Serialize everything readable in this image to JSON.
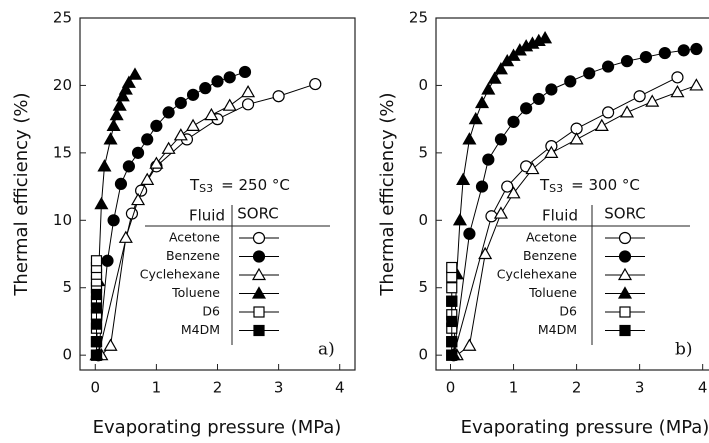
{
  "chart_data": [
    {
      "type": "line",
      "panel_label": "a)",
      "annotation": {
        "symbol": "T",
        "subscript": "S3",
        "text": "=  250 °C"
      },
      "xlabel": "Evaporating pressure (MPa)",
      "ylabel": "Thermal efficiency (%)",
      "xlim": [
        -0.25,
        4.25
      ],
      "ylim": [
        -1.1,
        25
      ],
      "xticks": [
        0,
        1,
        2,
        3,
        4
      ],
      "yticks": [
        0,
        5,
        10,
        15,
        20,
        25
      ],
      "legend": {
        "headers": [
          "Fluid",
          "SORC"
        ]
      },
      "series": [
        {
          "name": "Acetone",
          "color": "#000",
          "marker": "circle",
          "filled": false,
          "x": [
            0.05,
            0.6,
            0.75,
            1.0,
            1.5,
            2.0,
            2.5,
            3.0,
            3.6
          ],
          "values": [
            0,
            10.5,
            12.2,
            14,
            16,
            17.5,
            18.6,
            19.2,
            20.1
          ]
        },
        {
          "name": "Benzene",
          "color": "#000",
          "marker": "circle",
          "filled": true,
          "x": [
            0.05,
            0.2,
            0.3,
            0.42,
            0.55,
            0.7,
            0.85,
            1.0,
            1.2,
            1.4,
            1.6,
            1.8,
            2.0,
            2.2,
            2.45
          ],
          "values": [
            0,
            7,
            10,
            12.7,
            14,
            15,
            16,
            17,
            18,
            18.7,
            19.3,
            19.8,
            20.3,
            20.6,
            21
          ]
        },
        {
          "name": "Cyclehexane",
          "color": "#000",
          "marker": "triangle",
          "filled": false,
          "x": [
            0.1,
            0.25,
            0.5,
            0.7,
            0.85,
            1.0,
            1.2,
            1.4,
            1.6,
            1.9,
            2.2,
            2.5
          ],
          "values": [
            0,
            0.7,
            8.7,
            11.5,
            13,
            14.2,
            15.3,
            16.3,
            17,
            17.8,
            18.5,
            19.5
          ]
        },
        {
          "name": "Toluene",
          "color": "#000",
          "marker": "triangle",
          "filled": true,
          "x": [
            0.02,
            0.05,
            0.1,
            0.15,
            0.25,
            0.3,
            0.35,
            0.4,
            0.45,
            0.5,
            0.55,
            0.65
          ],
          "values": [
            0,
            5.5,
            11.2,
            14,
            16,
            17,
            17.8,
            18.5,
            19.2,
            19.7,
            20.2,
            20.8
          ]
        },
        {
          "name": "D6",
          "color": "#000",
          "marker": "square",
          "filled": false,
          "x": [
            0.02,
            0.02,
            0.02,
            0.02,
            0.02,
            0.02,
            0.02,
            0.02,
            0.02,
            0.02
          ],
          "values": [
            0,
            1,
            2,
            3,
            4,
            5,
            5.5,
            6,
            6.5,
            7
          ]
        },
        {
          "name": "M4DM",
          "color": "#000",
          "marker": "square",
          "filled": true,
          "x": [
            0.02,
            0.02,
            0.02,
            0.02,
            0.02
          ],
          "values": [
            0,
            1,
            2.3,
            3.5,
            4.5
          ]
        }
      ]
    },
    {
      "type": "line",
      "panel_label": "b)",
      "annotation": {
        "symbol": "T",
        "subscript": "S3",
        "text": "=  300 °C"
      },
      "xlabel": "Evaporating pressure (MPa)",
      "ylabel": "Thermal efficiency (%)",
      "xlim": [
        -0.23,
        4.37
      ],
      "ylim": [
        -1.1,
        25
      ],
      "xticks": [
        0,
        1,
        2,
        3,
        4
      ],
      "yticks": [
        0,
        5,
        {
          "value": 10,
          "label": "0"
        },
        {
          "value": 15,
          "label": "5"
        },
        {
          "value": 20,
          "label": "0"
        },
        25
      ],
      "legend": {
        "headers": [
          "Fluid",
          "SORC"
        ]
      },
      "series": [
        {
          "name": "Acetone",
          "color": "#000",
          "marker": "circle",
          "filled": false,
          "x": [
            0.05,
            0.65,
            0.9,
            1.2,
            1.6,
            2.0,
            2.5,
            3.0,
            3.6
          ],
          "values": [
            0,
            10.3,
            12.5,
            14,
            15.5,
            16.8,
            18,
            19.2,
            20.6
          ]
        },
        {
          "name": "Benzene",
          "color": "#000",
          "marker": "circle",
          "filled": true,
          "x": [
            0.05,
            0.3,
            0.5,
            0.6,
            0.8,
            1.0,
            1.2,
            1.4,
            1.6,
            1.9,
            2.2,
            2.5,
            2.8,
            3.1,
            3.4,
            3.7,
            3.9
          ],
          "values": [
            0,
            9,
            12.5,
            14.5,
            16,
            17.3,
            18.3,
            19,
            19.7,
            20.3,
            20.9,
            21.4,
            21.8,
            22.1,
            22.4,
            22.6,
            22.7
          ]
        },
        {
          "name": "Cyclehexane",
          "color": "#000",
          "marker": "triangle",
          "filled": false,
          "x": [
            0.1,
            0.3,
            0.55,
            0.8,
            1.0,
            1.3,
            1.6,
            2.0,
            2.4,
            2.8,
            3.2,
            3.6,
            3.9
          ],
          "values": [
            0,
            0.7,
            7.5,
            10.5,
            12,
            13.8,
            15,
            16,
            17,
            18,
            18.8,
            19.5,
            20
          ]
        },
        {
          "name": "Toluene",
          "color": "#000",
          "marker": "triangle",
          "filled": true,
          "x": [
            0.05,
            0.1,
            0.15,
            0.2,
            0.3,
            0.4,
            0.5,
            0.6,
            0.7,
            0.8,
            0.9,
            1.0,
            1.1,
            1.2,
            1.3,
            1.4,
            1.5
          ],
          "values": [
            0,
            6,
            10,
            13,
            16,
            17.5,
            18.7,
            19.7,
            20.5,
            21.2,
            21.8,
            22.2,
            22.6,
            22.9,
            23.1,
            23.3,
            23.5
          ]
        },
        {
          "name": "D6",
          "color": "#000",
          "marker": "square",
          "filled": false,
          "x": [
            0.02,
            0.02,
            0.02,
            0.02,
            0.02,
            0.02,
            0.02,
            0.02
          ],
          "values": [
            0,
            1,
            2,
            3,
            4,
            5,
            5.8,
            6.5
          ]
        },
        {
          "name": "M4DM",
          "color": "#000",
          "marker": "square",
          "filled": true,
          "x": [
            0.02,
            0.02,
            0.02,
            0.02
          ],
          "values": [
            0,
            1,
            2.5,
            4
          ]
        }
      ]
    }
  ]
}
